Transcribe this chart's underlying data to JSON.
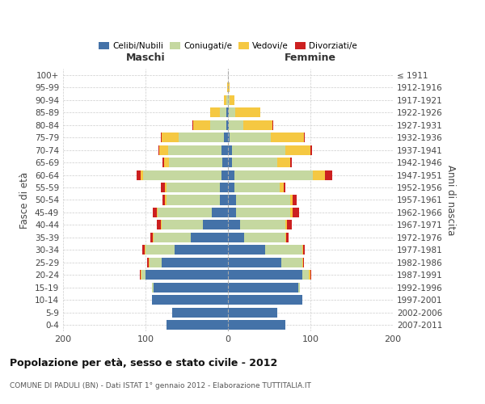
{
  "age_groups": [
    "0-4",
    "5-9",
    "10-14",
    "15-19",
    "20-24",
    "25-29",
    "30-34",
    "35-39",
    "40-44",
    "45-49",
    "50-54",
    "55-59",
    "60-64",
    "65-69",
    "70-74",
    "75-79",
    "80-84",
    "85-89",
    "90-94",
    "95-99",
    "100+"
  ],
  "birth_years": [
    "2007-2011",
    "2002-2006",
    "1997-2001",
    "1992-1996",
    "1987-1991",
    "1982-1986",
    "1977-1981",
    "1972-1976",
    "1967-1971",
    "1962-1966",
    "1957-1961",
    "1952-1956",
    "1947-1951",
    "1942-1946",
    "1937-1941",
    "1932-1936",
    "1927-1931",
    "1922-1926",
    "1917-1921",
    "1912-1916",
    "≤ 1911"
  ],
  "maschi": {
    "celibi": [
      75,
      68,
      92,
      90,
      100,
      80,
      65,
      45,
      30,
      20,
      10,
      10,
      8,
      7,
      8,
      5,
      2,
      2,
      0,
      0,
      0
    ],
    "coniugati": [
      0,
      0,
      0,
      2,
      5,
      15,
      35,
      45,
      50,
      65,
      65,
      65,
      95,
      65,
      65,
      55,
      20,
      8,
      2,
      0,
      0
    ],
    "vedovi": [
      0,
      0,
      0,
      0,
      1,
      1,
      1,
      1,
      1,
      1,
      1,
      1,
      3,
      5,
      10,
      20,
      20,
      12,
      3,
      1,
      0
    ],
    "divorziati": [
      0,
      0,
      0,
      0,
      1,
      2,
      3,
      3,
      5,
      5,
      3,
      5,
      5,
      2,
      1,
      1,
      1,
      0,
      0,
      0,
      0
    ]
  },
  "femmine": {
    "nubili": [
      70,
      60,
      90,
      85,
      90,
      65,
      45,
      20,
      15,
      10,
      10,
      8,
      8,
      5,
      5,
      2,
      1,
      1,
      0,
      0,
      0
    ],
    "coniugate": [
      0,
      0,
      0,
      2,
      8,
      25,
      45,
      50,
      55,
      65,
      65,
      55,
      95,
      55,
      65,
      50,
      18,
      8,
      2,
      0,
      0
    ],
    "vedove": [
      0,
      0,
      0,
      0,
      2,
      1,
      1,
      1,
      2,
      3,
      3,
      5,
      15,
      15,
      30,
      40,
      35,
      30,
      6,
      2,
      0
    ],
    "divorziate": [
      0,
      0,
      0,
      0,
      1,
      1,
      2,
      3,
      5,
      8,
      5,
      2,
      8,
      2,
      2,
      1,
      1,
      0,
      0,
      0,
      0
    ]
  },
  "colors": {
    "celibi": "#4472a8",
    "coniugati": "#c5d8a0",
    "vedovi": "#f5c842",
    "divorziati": "#cc2020"
  },
  "xlim": 200,
  "title": "Popolazione per età, sesso e stato civile - 2012",
  "subtitle": "COMUNE DI PADULI (BN) - Dati ISTAT 1° gennaio 2012 - Elaborazione TUTTITALIA.IT",
  "ylabel_left": "Fasce di età",
  "ylabel_right": "Anni di nascita",
  "legend_labels": [
    "Celibi/Nubili",
    "Coniugati/e",
    "Vedovi/e",
    "Divorziati/e"
  ]
}
